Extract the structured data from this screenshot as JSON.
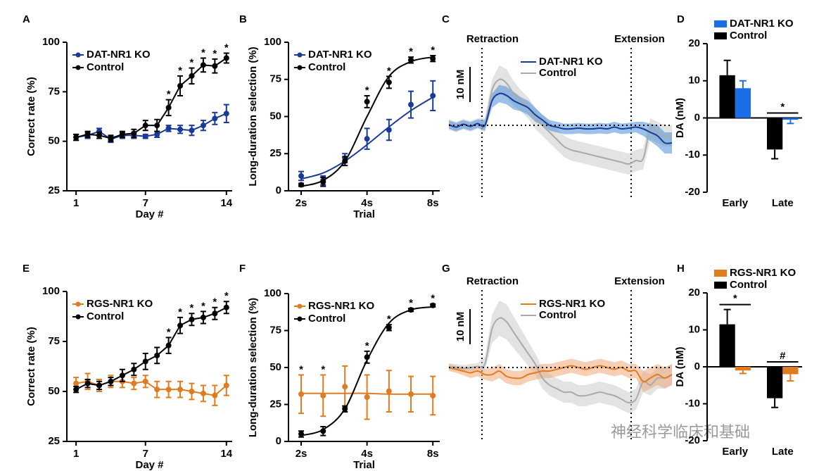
{
  "chart_data": [
    {
      "type": "line",
      "label": "A",
      "xlabel": "Day #",
      "ylabel": "Correct rate (%)",
      "x": [
        1,
        2,
        3,
        4,
        5,
        6,
        7,
        8,
        9,
        10,
        11,
        12,
        13,
        14
      ],
      "xlim": [
        0.2,
        14.5
      ],
      "xticks": [
        1,
        7,
        14
      ],
      "ylim": [
        25,
        100
      ],
      "yticks": [
        25,
        50,
        75,
        100
      ],
      "series": [
        {
          "name": "DAT-NR1 KO",
          "color": "#1b3a98",
          "values": [
            52,
            53,
            55,
            51,
            53,
            53,
            52.5,
            53.5,
            56.5,
            56,
            55.5,
            58,
            61.5,
            64
          ],
          "errors": [
            1.5,
            1.5,
            1.5,
            1.5,
            1.5,
            1.5,
            1,
            1.5,
            1.5,
            2,
            2.5,
            2.5,
            3,
            4.5
          ]
        },
        {
          "name": "Control",
          "color": "#000000",
          "values": [
            52,
            53.5,
            53,
            51.5,
            53.5,
            54,
            58,
            58,
            67,
            78,
            83,
            88.5,
            88,
            92
          ],
          "errors": [
            1.5,
            1.5,
            1.5,
            1.5,
            1.5,
            2,
            2.5,
            3,
            4,
            5,
            4,
            3.5,
            3.5,
            2.5
          ]
        }
      ],
      "annotations": [
        null,
        null,
        null,
        null,
        null,
        null,
        null,
        null,
        "*",
        "*",
        "*",
        "*",
        "*",
        "*"
      ]
    },
    {
      "type": "line",
      "label": "B",
      "xlabel": "Trial",
      "ylabel": "Long-duration selection (%)",
      "xscale": "log",
      "x": [
        2,
        2.52,
        3.17,
        4,
        5.04,
        6.35,
        8
      ],
      "xlim": [
        1.75,
        8.6
      ],
      "xticks": [
        {
          "value": 2,
          "label": "2s"
        },
        {
          "value": 4,
          "label": "4s"
        },
        {
          "value": 8,
          "label": "8s"
        }
      ],
      "ylim": [
        0,
        100
      ],
      "yticks": [
        0,
        25,
        50,
        75,
        100
      ],
      "series": [
        {
          "name": "DAT-NR1 KO",
          "color": "#1b3a98",
          "values": [
            10,
            7,
            22,
            35,
            41,
            58,
            64
          ],
          "errors": [
            3,
            3,
            3,
            7,
            7,
            9,
            10
          ],
          "fit": [
            8,
            12,
            20,
            31,
            43,
            54,
            63
          ]
        },
        {
          "name": "Control",
          "color": "#000000",
          "values": [
            4,
            6,
            20,
            60,
            73,
            88,
            89
          ],
          "errors": [
            1,
            3,
            3,
            4,
            4,
            2,
            2
          ],
          "fit": [
            3,
            7,
            20,
            50,
            77,
            87,
            90
          ]
        }
      ],
      "annotations": [
        null,
        null,
        null,
        "*",
        "*",
        "*",
        "*"
      ]
    },
    {
      "type": "trace",
      "label": "C",
      "events": [
        "Retraction",
        "Extension"
      ],
      "scale_bar": {
        "value": 10,
        "label": "10 nM"
      },
      "series": [
        {
          "name": "DAT-NR1 KO",
          "color": "#1b3a98",
          "band_color": "#4a8fd8",
          "values": [
            0.2,
            -0.5,
            0.3,
            -0.3,
            0.5,
            0,
            7,
            9,
            8.5,
            7,
            6,
            5,
            3,
            1.5,
            0,
            -0.5,
            -1,
            -1,
            -0.8,
            -1,
            -1,
            -0.8,
            -1,
            -0.5,
            -1,
            -0.8,
            -0.5,
            -1,
            -2,
            -3,
            -5,
            -5
          ],
          "errors": [
            1.2,
            1.2,
            1.2,
            1.2,
            1.2,
            1.5,
            2,
            2.5,
            2.5,
            2.5,
            2,
            2,
            2,
            1.5,
            1.5,
            1.5,
            1.5,
            1.5,
            1.5,
            1.5,
            1.5,
            1.5,
            1.5,
            1.5,
            1.5,
            1.5,
            1.5,
            2,
            2.5,
            3,
            3,
            3
          ]
        },
        {
          "name": "Control",
          "color": "#aaaaaa",
          "band_color": "#cccccc",
          "values": [
            0.2,
            -0.5,
            0.3,
            -0.3,
            0.5,
            0,
            10,
            13,
            12,
            9,
            7,
            5,
            2,
            0,
            -2,
            -4,
            -6,
            -7,
            -7.5,
            -8,
            -8.5,
            -9,
            -9.5,
            -10,
            -10.5,
            -11,
            -10,
            -9.5,
            -1,
            -2,
            -3,
            -3
          ],
          "errors": [
            1.5,
            1.5,
            1.5,
            1.5,
            1.5,
            2,
            3,
            4,
            4,
            3.5,
            3,
            3,
            3,
            3,
            3,
            3,
            3,
            3,
            3,
            3,
            3,
            3,
            3,
            3,
            3,
            3,
            3,
            3,
            3,
            3,
            3,
            3
          ]
        }
      ]
    },
    {
      "type": "bar",
      "label": "D",
      "ylabel": "DA (nM)",
      "categories": [
        "Early",
        "Late"
      ],
      "ylim": [
        -20,
        20
      ],
      "yticks": [
        -20,
        -10,
        0,
        10,
        20
      ],
      "series": [
        {
          "name": "DAT-NR1 KO",
          "color": "#1a6fe8",
          "values": [
            8,
            -0.5
          ],
          "errors": [
            2,
            1
          ]
        },
        {
          "name": "Control",
          "color": "#000000",
          "values": [
            11.5,
            -8.5
          ],
          "errors": [
            4,
            2.5
          ]
        }
      ],
      "annotations": [
        null,
        "*"
      ]
    },
    {
      "type": "line",
      "label": "E",
      "xlabel": "Day #",
      "ylabel": "Correct rate (%)",
      "x": [
        1,
        2,
        3,
        4,
        5,
        6,
        7,
        8,
        9,
        10,
        11,
        12,
        13,
        14
      ],
      "xlim": [
        0.2,
        14.5
      ],
      "xticks": [
        1,
        7,
        14
      ],
      "ylim": [
        25,
        100
      ],
      "yticks": [
        25,
        50,
        75,
        100
      ],
      "series": [
        {
          "name": "RGS-NR1 KO",
          "color": "#e07b20",
          "values": [
            54,
            55,
            53,
            55,
            55,
            54,
            55,
            51,
            51,
            51,
            50,
            49,
            48,
            53
          ],
          "errors": [
            3,
            4,
            3,
            3,
            3,
            3,
            3,
            4,
            4,
            4,
            4,
            4,
            5,
            5
          ]
        },
        {
          "name": "Control",
          "color": "#000000",
          "values": [
            51,
            54,
            53,
            55,
            58,
            61,
            65,
            68,
            73,
            83,
            86,
            87,
            89,
            92
          ],
          "errors": [
            1.5,
            2,
            2,
            2,
            3,
            3,
            4,
            4,
            4,
            4,
            3,
            3,
            3,
            3
          ]
        }
      ],
      "annotations": [
        null,
        null,
        null,
        null,
        null,
        null,
        null,
        null,
        "*",
        "*",
        "*",
        "*",
        "*",
        "*"
      ]
    },
    {
      "type": "line",
      "label": "F",
      "xlabel": "Trial",
      "ylabel": "Long-duration selection (%)",
      "xscale": "log",
      "x": [
        2,
        2.52,
        3.17,
        4,
        5.04,
        6.35,
        8
      ],
      "xlim": [
        1.75,
        8.6
      ],
      "xticks": [
        {
          "value": 2,
          "label": "2s"
        },
        {
          "value": 4,
          "label": "4s"
        },
        {
          "value": 8,
          "label": "8s"
        }
      ],
      "ylim": [
        0,
        100
      ],
      "yticks": [
        0,
        25,
        50,
        75,
        100
      ],
      "series": [
        {
          "name": "RGS-NR1 KO",
          "color": "#e07b20",
          "values": [
            32,
            31,
            37,
            30,
            34,
            32,
            31
          ],
          "errors": [
            13,
            14,
            14,
            15,
            14,
            12,
            13
          ],
          "fit": [
            32.5,
            32.5,
            32.5,
            32.5,
            32,
            32,
            32
          ]
        },
        {
          "name": "Control",
          "color": "#000000",
          "values": [
            5,
            7,
            22,
            57,
            77,
            89,
            92
          ],
          "errors": [
            2,
            3,
            2,
            4,
            2,
            1,
            1
          ],
          "fit": [
            4,
            8,
            22,
            55,
            80,
            89,
            91
          ]
        }
      ],
      "annotations": [
        "*",
        "*",
        null,
        "*",
        "*",
        "*",
        "*"
      ]
    },
    {
      "type": "trace",
      "label": "G",
      "events": [
        "Retraction",
        "Extension"
      ],
      "scale_bar": {
        "value": 10,
        "label": "10 nM"
      },
      "series": [
        {
          "name": "RGS-NR1 KO",
          "color": "#e07b20",
          "band_color": "#f0a878",
          "values": [
            0,
            -0.5,
            -1,
            -1.5,
            -1,
            -2,
            -2,
            -1,
            -2.5,
            -3,
            -3,
            -2,
            -1.5,
            -1,
            -1,
            -0.5,
            0,
            0.5,
            0,
            -0.5,
            0,
            0.5,
            0,
            -0.5,
            0,
            -1,
            -1,
            -4,
            -3,
            -2,
            -3,
            -2
          ],
          "errors": [
            1,
            1,
            1.2,
            1.5,
            1.5,
            1.5,
            2,
            2,
            2,
            2,
            2,
            2,
            2,
            2,
            2,
            2,
            2,
            2,
            2,
            2,
            2,
            2,
            2,
            2,
            2,
            2,
            2,
            3,
            3,
            3,
            3,
            3
          ]
        },
        {
          "name": "Control",
          "color": "#aaaaaa",
          "band_color": "#cccccc",
          "values": [
            0.2,
            0,
            -0.3,
            0,
            0.3,
            1,
            11,
            14,
            13,
            10,
            7,
            4,
            1,
            -3,
            -5,
            -6,
            -7,
            -7,
            -8,
            -8,
            -7.5,
            -7,
            -7.5,
            -8,
            -9,
            -10,
            -9,
            -4,
            -5,
            -3,
            -3,
            -2
          ],
          "errors": [
            1,
            1,
            1,
            1,
            1,
            2,
            4,
            5,
            5,
            4.5,
            4,
            3.5,
            3,
            3,
            3,
            3,
            3,
            3,
            3,
            3,
            3,
            3,
            3,
            3,
            3,
            3,
            3,
            3,
            3,
            3,
            3,
            3
          ]
        }
      ]
    },
    {
      "type": "bar",
      "label": "H",
      "ylabel": "DA (nM)",
      "categories": [
        "Early",
        "Late"
      ],
      "ylim": [
        -20,
        20
      ],
      "yticks": [
        -20,
        -10,
        0,
        10,
        20
      ],
      "series": [
        {
          "name": "RGS-NR1 KO",
          "color": "#e07b20",
          "values": [
            -1,
            -2
          ],
          "errors": [
            0.8,
            1.8
          ]
        },
        {
          "name": "Control",
          "color": "#000000",
          "values": [
            11.5,
            -8.5
          ],
          "errors": [
            4,
            2.5
          ]
        }
      ],
      "annotations": [
        "*",
        "#"
      ]
    }
  ],
  "watermark": "神经科学临床和基础"
}
